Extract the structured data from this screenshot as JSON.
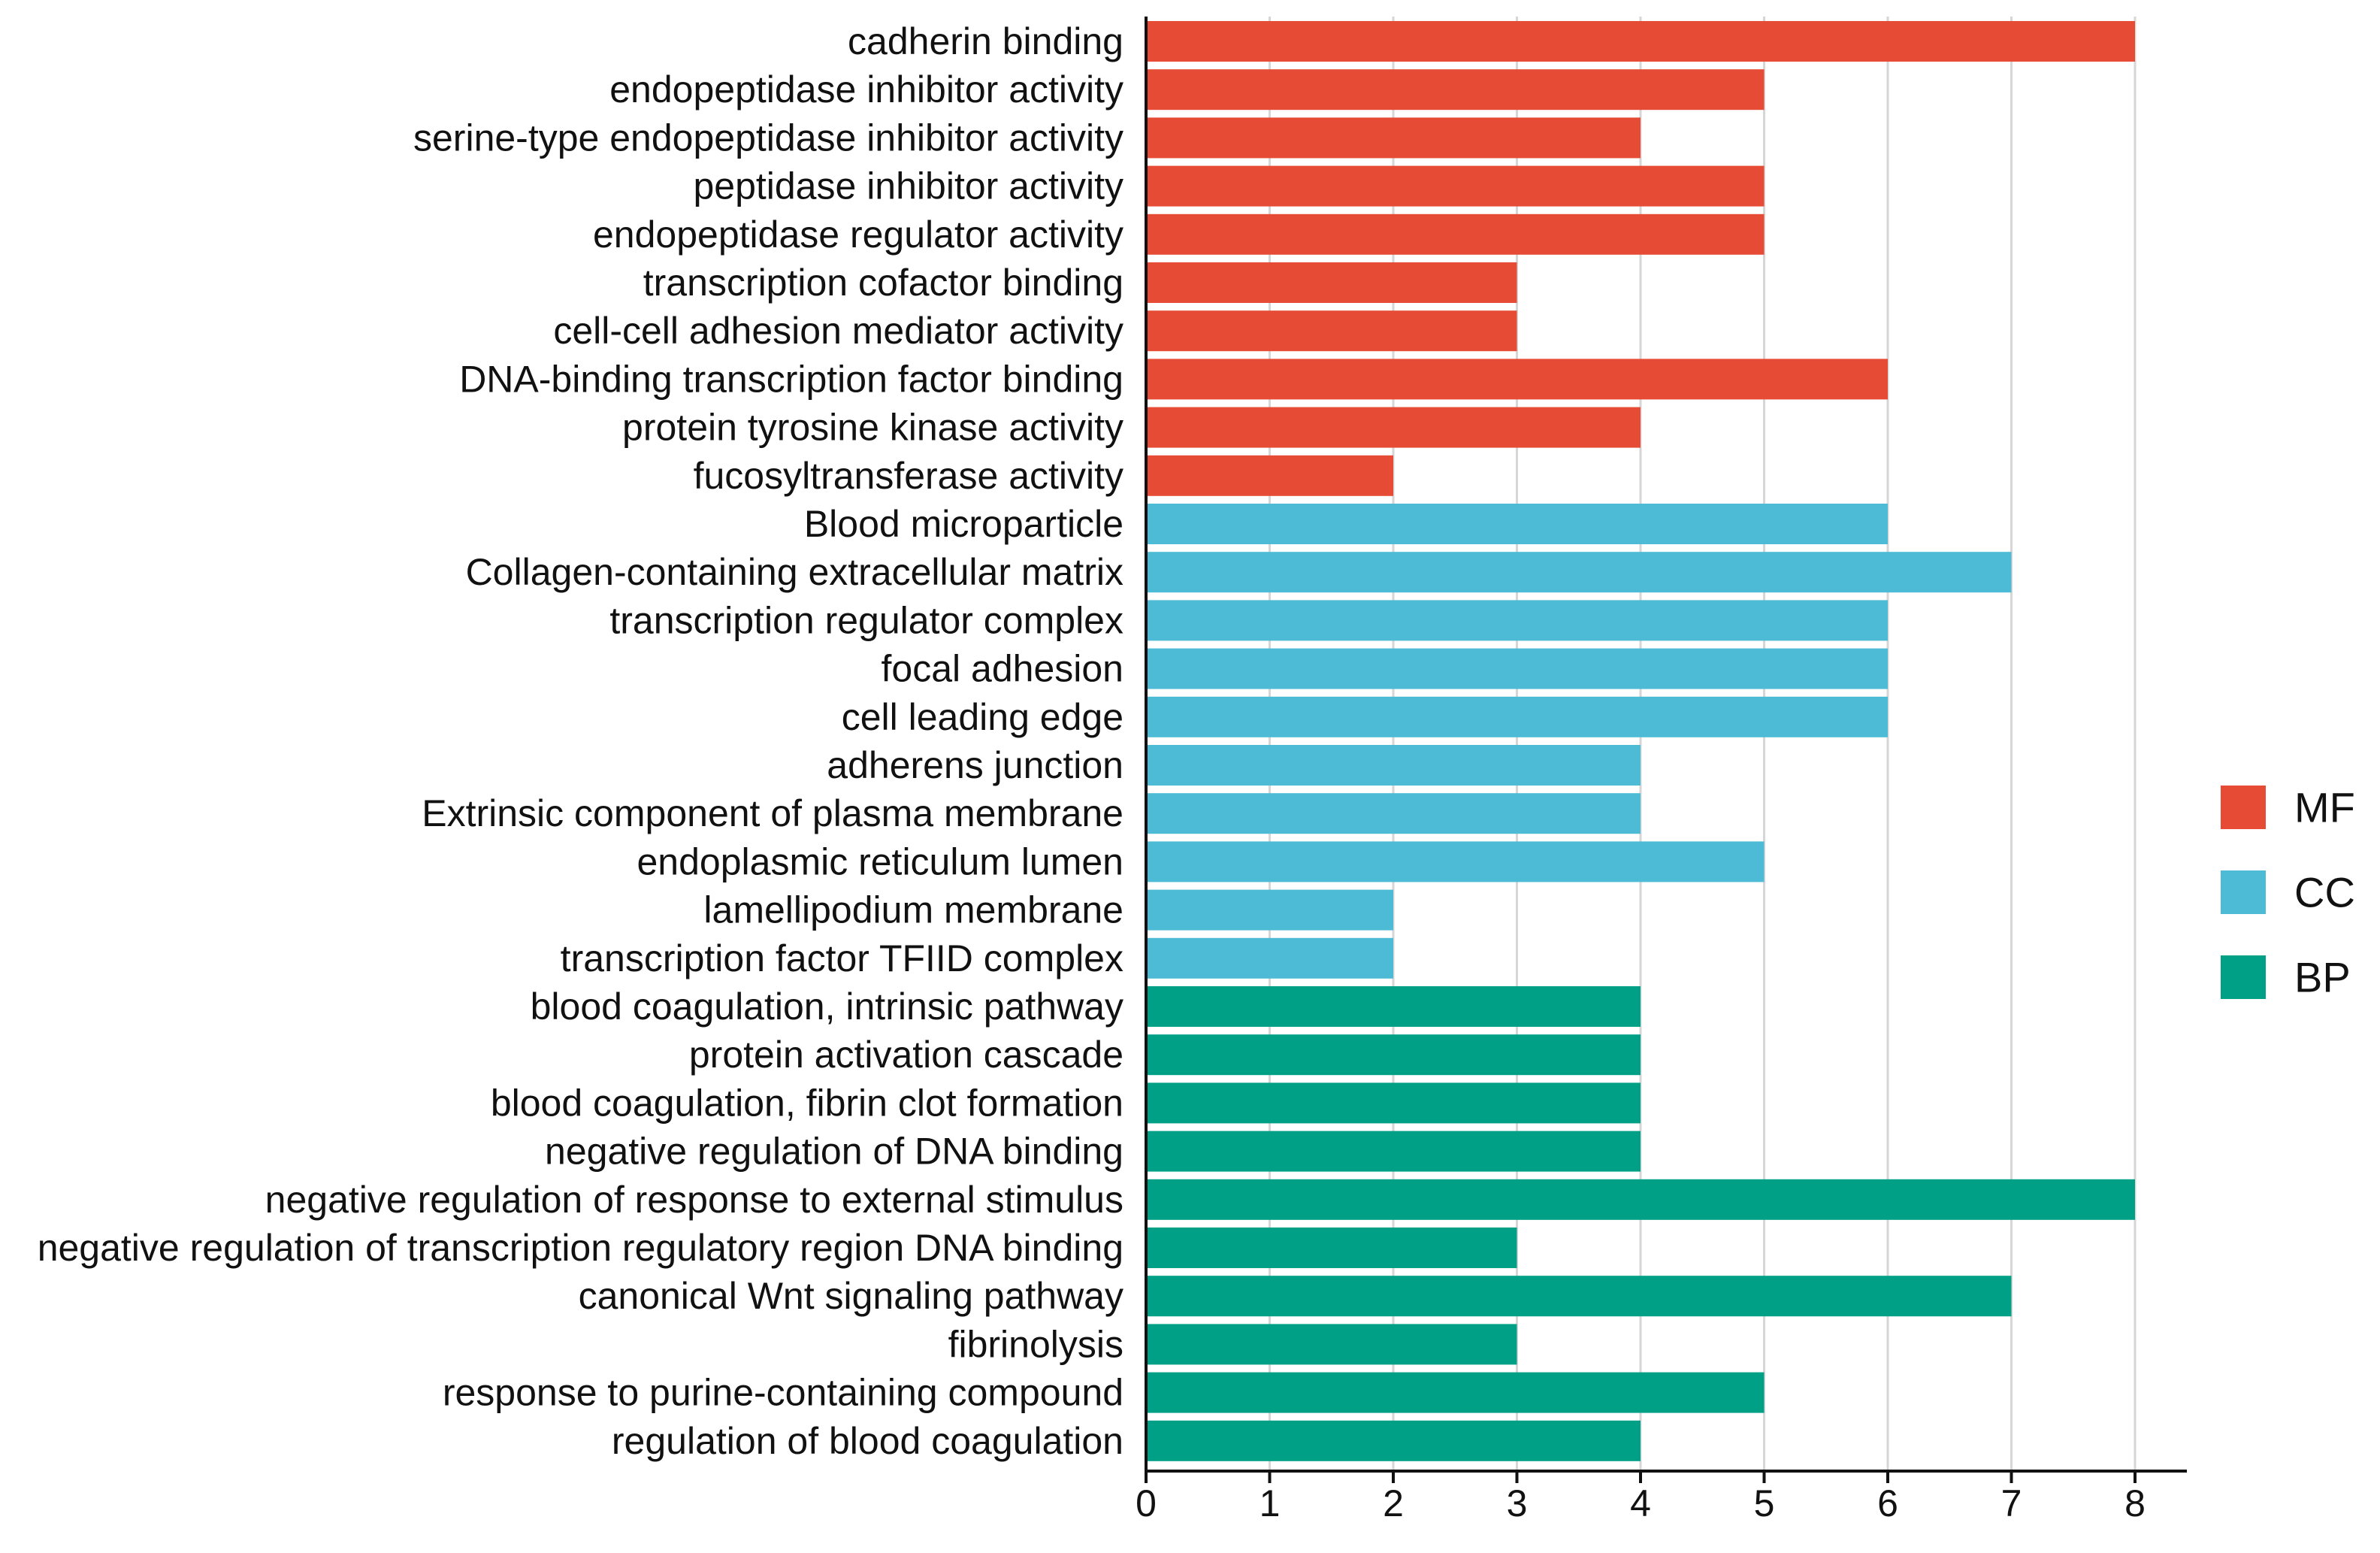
{
  "chart_data": {
    "type": "bar",
    "orientation": "horizontal",
    "title": "",
    "xlabel": "",
    "ylabel": "",
    "xlim": [
      0,
      8.4
    ],
    "xticks": [
      0,
      1,
      2,
      3,
      4,
      5,
      6,
      7,
      8
    ],
    "grid": "vertical",
    "legend_position": "right",
    "groups": [
      {
        "name": "MF",
        "color": "#E64B35"
      },
      {
        "name": "CC",
        "color": "#4DBBD5"
      },
      {
        "name": "BP",
        "color": "#00A087"
      }
    ],
    "bars": [
      {
        "label": "cadherin binding",
        "value": 8,
        "group": "MF"
      },
      {
        "label": "endopeptidase inhibitor activity",
        "value": 5,
        "group": "MF"
      },
      {
        "label": "serine-type endopeptidase inhibitor activity",
        "value": 4,
        "group": "MF"
      },
      {
        "label": "peptidase inhibitor activity",
        "value": 5,
        "group": "MF"
      },
      {
        "label": "endopeptidase regulator activity",
        "value": 5,
        "group": "MF"
      },
      {
        "label": "transcription cofactor binding",
        "value": 3,
        "group": "MF"
      },
      {
        "label": "cell-cell adhesion mediator activity",
        "value": 3,
        "group": "MF"
      },
      {
        "label": "DNA-binding transcription factor binding",
        "value": 6,
        "group": "MF"
      },
      {
        "label": "protein tyrosine kinase activity",
        "value": 4,
        "group": "MF"
      },
      {
        "label": "fucosyltransferase activity",
        "value": 2,
        "group": "MF"
      },
      {
        "label": "Blood microparticle",
        "value": 6,
        "group": "CC"
      },
      {
        "label": "Collagen-containing extracellular matrix",
        "value": 7,
        "group": "CC"
      },
      {
        "label": "transcription regulator complex",
        "value": 6,
        "group": "CC"
      },
      {
        "label": "focal adhesion",
        "value": 6,
        "group": "CC"
      },
      {
        "label": "cell leading edge",
        "value": 6,
        "group": "CC"
      },
      {
        "label": "adherens junction",
        "value": 4,
        "group": "CC"
      },
      {
        "label": "Extrinsic component of plasma membrane",
        "value": 4,
        "group": "CC"
      },
      {
        "label": "endoplasmic reticulum lumen",
        "value": 5,
        "group": "CC"
      },
      {
        "label": "lamellipodium membrane",
        "value": 2,
        "group": "CC"
      },
      {
        "label": "transcription factor TFIID complex",
        "value": 2,
        "group": "CC"
      },
      {
        "label": "blood coagulation, intrinsic pathway",
        "value": 4,
        "group": "BP"
      },
      {
        "label": "protein activation cascade",
        "value": 4,
        "group": "BP"
      },
      {
        "label": "blood coagulation, fibrin clot formation",
        "value": 4,
        "group": "BP"
      },
      {
        "label": "negative regulation of DNA binding",
        "value": 4,
        "group": "BP"
      },
      {
        "label": "negative regulation of response to external stimulus",
        "value": 8,
        "group": "BP"
      },
      {
        "label": "negative regulation of transcription regulatory region DNA binding",
        "value": 3,
        "group": "BP"
      },
      {
        "label": "canonical Wnt signaling pathway",
        "value": 7,
        "group": "BP"
      },
      {
        "label": "fibrinolysis",
        "value": 3,
        "group": "BP"
      },
      {
        "label": "response to purine-containing compound",
        "value": 5,
        "group": "BP"
      },
      {
        "label": "regulation of blood coagulation",
        "value": 4,
        "group": "BP"
      }
    ]
  }
}
